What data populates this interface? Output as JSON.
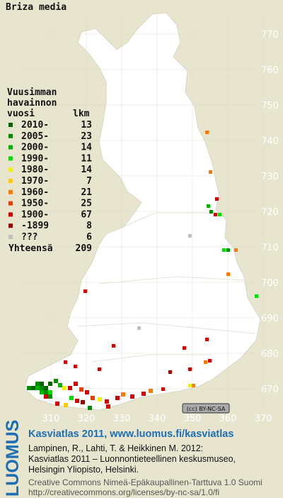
{
  "title": "Briza media",
  "legend": {
    "heading": [
      "Vuusimman",
      "havainnon",
      "vuosi"
    ],
    "count_heading": "lkm",
    "entries": [
      {
        "label": "2010-",
        "count": 13,
        "color": "#006400"
      },
      {
        "label": "2005-",
        "count": 23,
        "color": "#008c00"
      },
      {
        "label": "2000-",
        "count": 14,
        "color": "#00b400"
      },
      {
        "label": "1990-",
        "count": 11,
        "color": "#00e000"
      },
      {
        "label": "1980-",
        "count": 14,
        "color": "#f0f000"
      },
      {
        "label": "1970-",
        "count": 7,
        "color": "#ffc800"
      },
      {
        "label": "1960-",
        "count": 21,
        "color": "#ff7800"
      },
      {
        "label": "1950-",
        "count": 25,
        "color": "#e83c00"
      },
      {
        "label": "1900-",
        "count": 67,
        "color": "#d20000"
      },
      {
        "label": "-1899",
        "count": 8,
        "color": "#a00000"
      },
      {
        "label": "???",
        "count": 6,
        "color": "#c0c0c0"
      }
    ],
    "total_label": "Yhteensä",
    "total": 209
  },
  "grid": {
    "northing": [
      770,
      760,
      750,
      740,
      730,
      720,
      710,
      700,
      690,
      680,
      670
    ],
    "easting": [
      310,
      320,
      330,
      340,
      350,
      360,
      370
    ]
  },
  "license_badge": "(cc) BY-NC-SA",
  "footer": {
    "logo": "LUOMUS",
    "headline": "Kasviatlas 2011, www.luomus.fi/kasviatlas",
    "citation": [
      "Lampinen, R., Lahti, T. & Heikkinen M. 2012:",
      "Kasviatlas 2011 – Luonnontieteellinen keskusmuseo,",
      "Helsingin Yliopisto, Helsinki."
    ],
    "license": [
      "Creative Commons Nimeä-Epäkaupallinen-Tarttuva 1.0 Suomi",
      "http://creativecommons.org/licenses/by-nc-sa/1.0/fi"
    ]
  }
}
